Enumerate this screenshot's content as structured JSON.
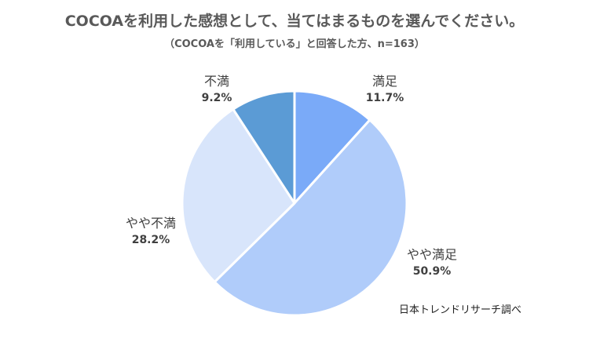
{
  "chart_data": {
    "type": "pie",
    "title": "COCOAを利用した感想として、当てはまるものを選んでください。",
    "subtitle": "（COCOAを「利用している」と回答した方、n=163）",
    "slices": [
      {
        "label": "満足",
        "value": 11.7,
        "value_label": "11.7%",
        "color": "#7aaaf8"
      },
      {
        "label": "やや満足",
        "value": 50.9,
        "value_label": "50.9%",
        "color": "#b0ccfa"
      },
      {
        "label": "やや不満",
        "value": 28.2,
        "value_label": "28.2%",
        "color": "#d8e5fb"
      },
      {
        "label": "不満",
        "value": 9.2,
        "value_label": "9.2%",
        "color": "#5b9bd5"
      }
    ],
    "start_angle": "12-o'clock",
    "direction": "clockwise",
    "source_note": "日本トレンドリサーチ調べ"
  }
}
